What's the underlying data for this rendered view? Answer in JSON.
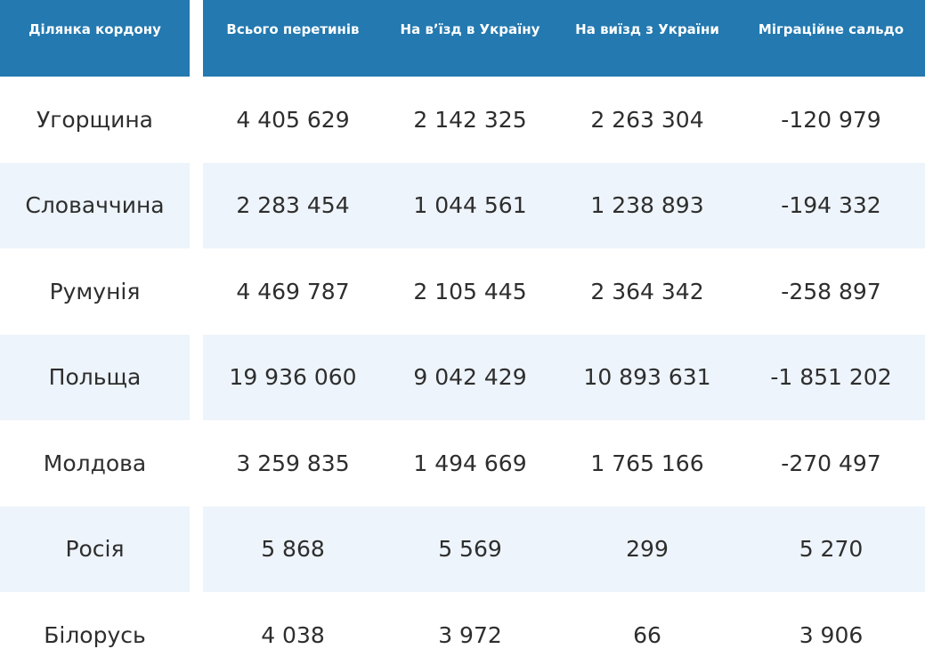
{
  "table": {
    "headers": [
      "Ділянка кордону",
      "Всього перетинів",
      "На вʼїзд в Україну",
      "На виїзд з України",
      "Міграційне сальдо"
    ],
    "rows": [
      [
        "Угорщина",
        "4 405 629",
        "2 142 325",
        "2 263 304",
        "-120 979"
      ],
      [
        "Словаччина",
        "2 283 454",
        "1 044 561",
        "1 238 893",
        "-194 332"
      ],
      [
        "Румунія",
        "4 469 787",
        "2 105 445",
        "2 364 342",
        "-258 897"
      ],
      [
        "Польща",
        "19 936 060",
        "9 042 429",
        "10 893 631",
        "-1 851 202"
      ],
      [
        "Молдова",
        "3 259 835",
        "1 494 669",
        "1 765 166",
        "-270 497"
      ],
      [
        "Росія",
        "5 868",
        "5 569",
        "299",
        "5 270"
      ],
      [
        "Білорусь",
        "4 038",
        "3 972",
        "66",
        "3 906"
      ]
    ]
  },
  "colors": {
    "header_bg": "#2379b0",
    "stripe_bg": "#edf4fb",
    "text": "#2e2e2e"
  }
}
